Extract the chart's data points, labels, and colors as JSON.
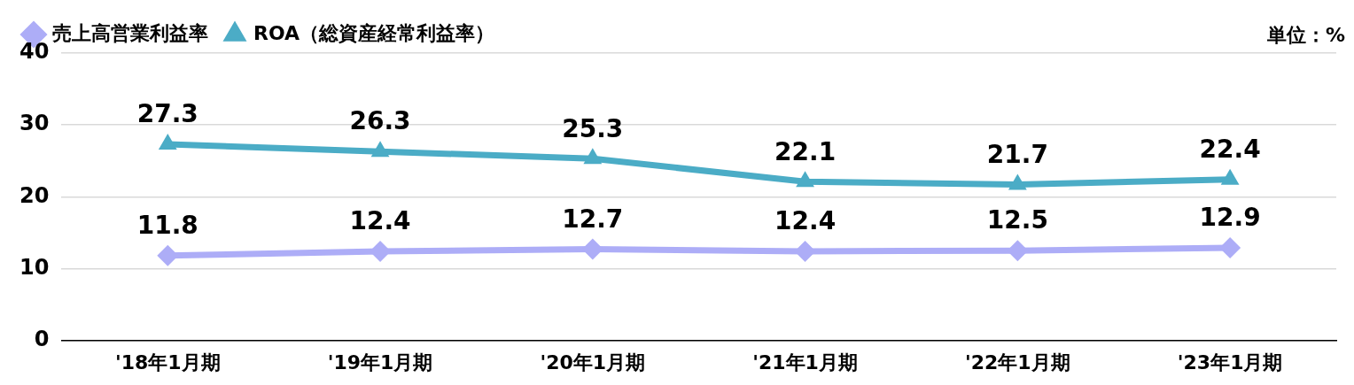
{
  "chart_data": {
    "type": "line",
    "categories": [
      "'18年1月期",
      "'19年1月期",
      "'20年1月期",
      "'21年1月期",
      "'22年1月期",
      "'23年1月期"
    ],
    "series": [
      {
        "name": "売上高営業利益率",
        "color": "#adadf7",
        "marker": "diamond",
        "values": [
          11.8,
          12.4,
          12.7,
          12.4,
          12.5,
          12.9
        ]
      },
      {
        "name": "ROA（総資産経常利益率）",
        "color": "#4bacc6",
        "marker": "triangle",
        "values": [
          27.3,
          26.3,
          25.3,
          22.1,
          21.7,
          22.4
        ]
      }
    ],
    "ylim": [
      0,
      40
    ],
    "yticks": [
      0,
      10,
      20,
      30,
      40
    ],
    "grid": "y",
    "legend": "top left",
    "data_labels": true,
    "line_style": "solid",
    "annotations": [
      "単位：%"
    ]
  }
}
